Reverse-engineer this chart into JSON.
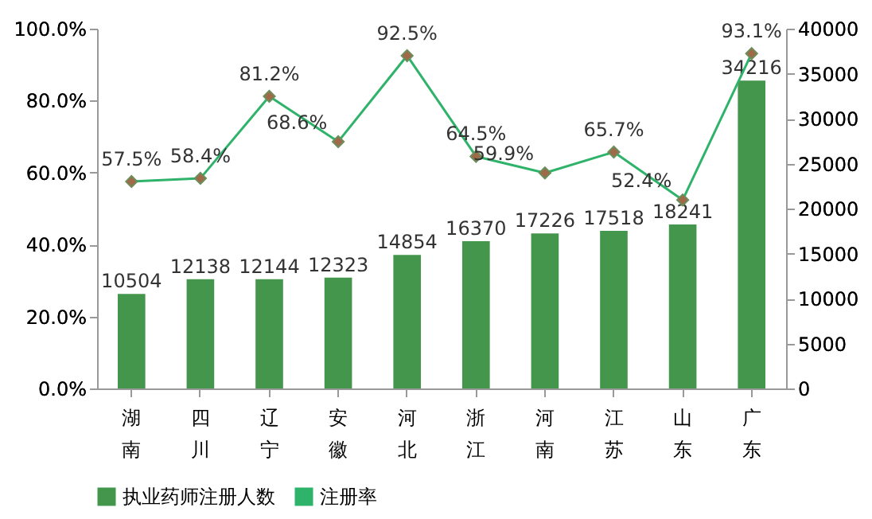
{
  "chart_data": {
    "type": "bar",
    "categories": [
      "湖南",
      "四川",
      "辽宁",
      "安徽",
      "河北",
      "浙江",
      "河南",
      "江苏",
      "山东",
      "广东"
    ],
    "series": [
      {
        "name": "执业药师注册人数",
        "axis": "y2",
        "color": "#43964b",
        "values": [
          10504,
          12138,
          12144,
          12323,
          14854,
          16370,
          17226,
          17518,
          18241,
          34216
        ]
      },
      {
        "name": "注册率",
        "type": "line",
        "axis": "y",
        "color": "#2fb36a",
        "marker": "diamond",
        "line_style": "solid",
        "values": [
          57.5,
          58.4,
          81.2,
          68.6,
          92.5,
          64.5,
          59.9,
          65.7,
          52.4,
          93.1
        ],
        "value_labels": [
          "57.5%",
          "58.4%",
          "81.2%",
          "68.6%",
          "92.5%",
          "64.5%",
          "59.9%",
          "65.7%",
          "52.4%",
          "93.1%"
        ]
      }
    ],
    "ylim": [
      0,
      100
    ],
    "yticks": [
      {
        "value": 0,
        "label": "0.0%"
      },
      {
        "value": 20,
        "label": "20.0%"
      },
      {
        "value": 40,
        "label": "40.0%"
      },
      {
        "value": 60,
        "label": "60.0%"
      },
      {
        "value": 80,
        "label": "80.0%"
      },
      {
        "value": 100,
        "label": "100.0%"
      }
    ],
    "y2lim": [
      0,
      40000
    ],
    "y2ticks": [
      0,
      5000,
      10000,
      15000,
      20000,
      25000,
      30000,
      35000,
      40000
    ],
    "data_labels": true,
    "grid": false,
    "legend": "bottom"
  }
}
